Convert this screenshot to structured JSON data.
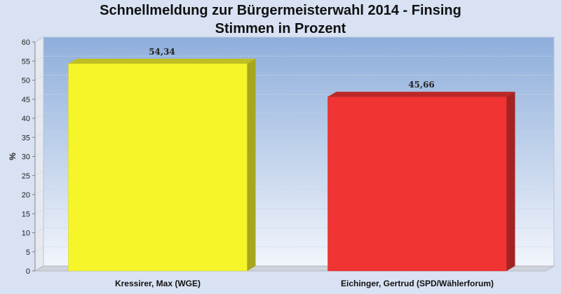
{
  "chart_data": {
    "type": "bar",
    "title": "Schnellmeldung zur Bürgermeisterwahl 2014 - Finsing",
    "subtitle": "Stimmen in Prozent",
    "ylabel": "%",
    "xlabel": "",
    "ylim": [
      0,
      60
    ],
    "yticks": [
      0,
      5,
      10,
      15,
      20,
      25,
      30,
      35,
      40,
      45,
      50,
      55,
      60
    ],
    "grid": true,
    "legend": "none",
    "categories": [
      "Kressirer, Max (WGE)",
      "Eichinger, Gertrud (SPD/Wählerforum)"
    ],
    "values": [
      54.34,
      45.66
    ],
    "value_labels": [
      "54,34",
      "45,66"
    ],
    "colors": [
      "#f5f52a",
      "#f03333"
    ],
    "plot_background": "#9bb5dd",
    "page_background": "#d9e2f3"
  }
}
